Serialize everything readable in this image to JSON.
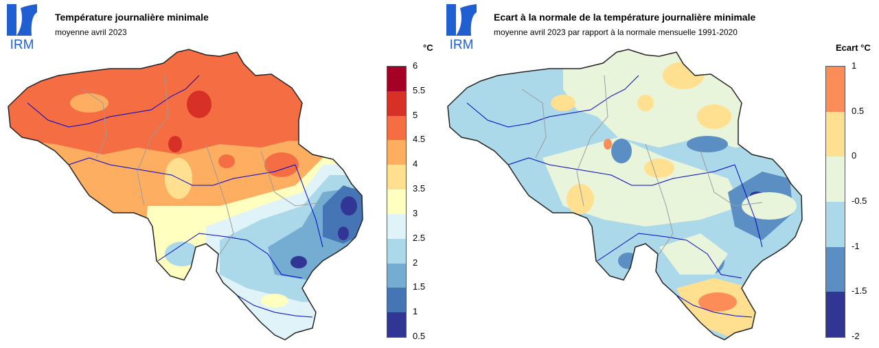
{
  "logo_text": "IRM",
  "left": {
    "title": "Température journalière minimale",
    "subtitle": "moyenne avril 2023",
    "unit": "°C",
    "legend_ticks": [
      "6",
      "5.5",
      "5",
      "4.5",
      "4",
      "3.5",
      "3",
      "2.5",
      "2",
      "1.5",
      "1",
      "0.5"
    ],
    "legend_colors": [
      "#a50026",
      "#d73027",
      "#f46d43",
      "#fdae61",
      "#fee090",
      "#ffffbf",
      "#e0f3f8",
      "#abd9e9",
      "#74add1",
      "#4575b4",
      "#313695"
    ]
  },
  "right": {
    "title": "Ecart à la normale de la température journalière minimale",
    "subtitle": "moyenne avril 2023 par rapport à la normale mensuelle 1991-2020",
    "unit": "Ecart °C",
    "legend_ticks": [
      "1",
      "0.5",
      "0",
      "-0.5",
      "-1",
      "-1.5",
      "-2"
    ],
    "legend_colors": [
      "#fc8d59",
      "#fee090",
      "#e9f5db",
      "#abd9e9",
      "#5b8fc4",
      "#313695"
    ]
  }
}
